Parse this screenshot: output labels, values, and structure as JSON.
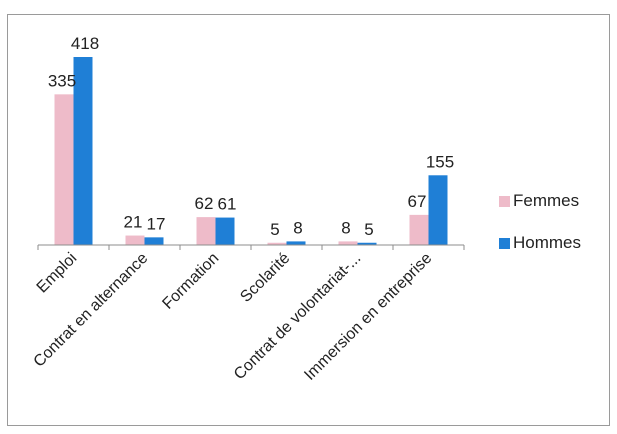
{
  "chart_data": {
    "type": "bar",
    "categories": [
      "Emploi",
      "Contrat en alternance",
      "Formation",
      "Scolarité",
      "Contrat de volontariat-...",
      "Immersion en entreprise"
    ],
    "series": [
      {
        "name": "Femmes",
        "values": [
          335,
          21,
          62,
          5,
          8,
          67
        ],
        "color": "#eebbc9"
      },
      {
        "name": "Hommes",
        "values": [
          418,
          17,
          61,
          8,
          5,
          155
        ],
        "color": "#1f7fd6"
      }
    ],
    "data_labels": [
      [
        "335",
        "21",
        "62",
        "5",
        "8",
        "67"
      ],
      [
        "418",
        "17",
        "61",
        "8",
        "5",
        "155"
      ]
    ],
    "ylim": [
      0,
      418
    ],
    "grid": false,
    "legend_position": "right"
  }
}
